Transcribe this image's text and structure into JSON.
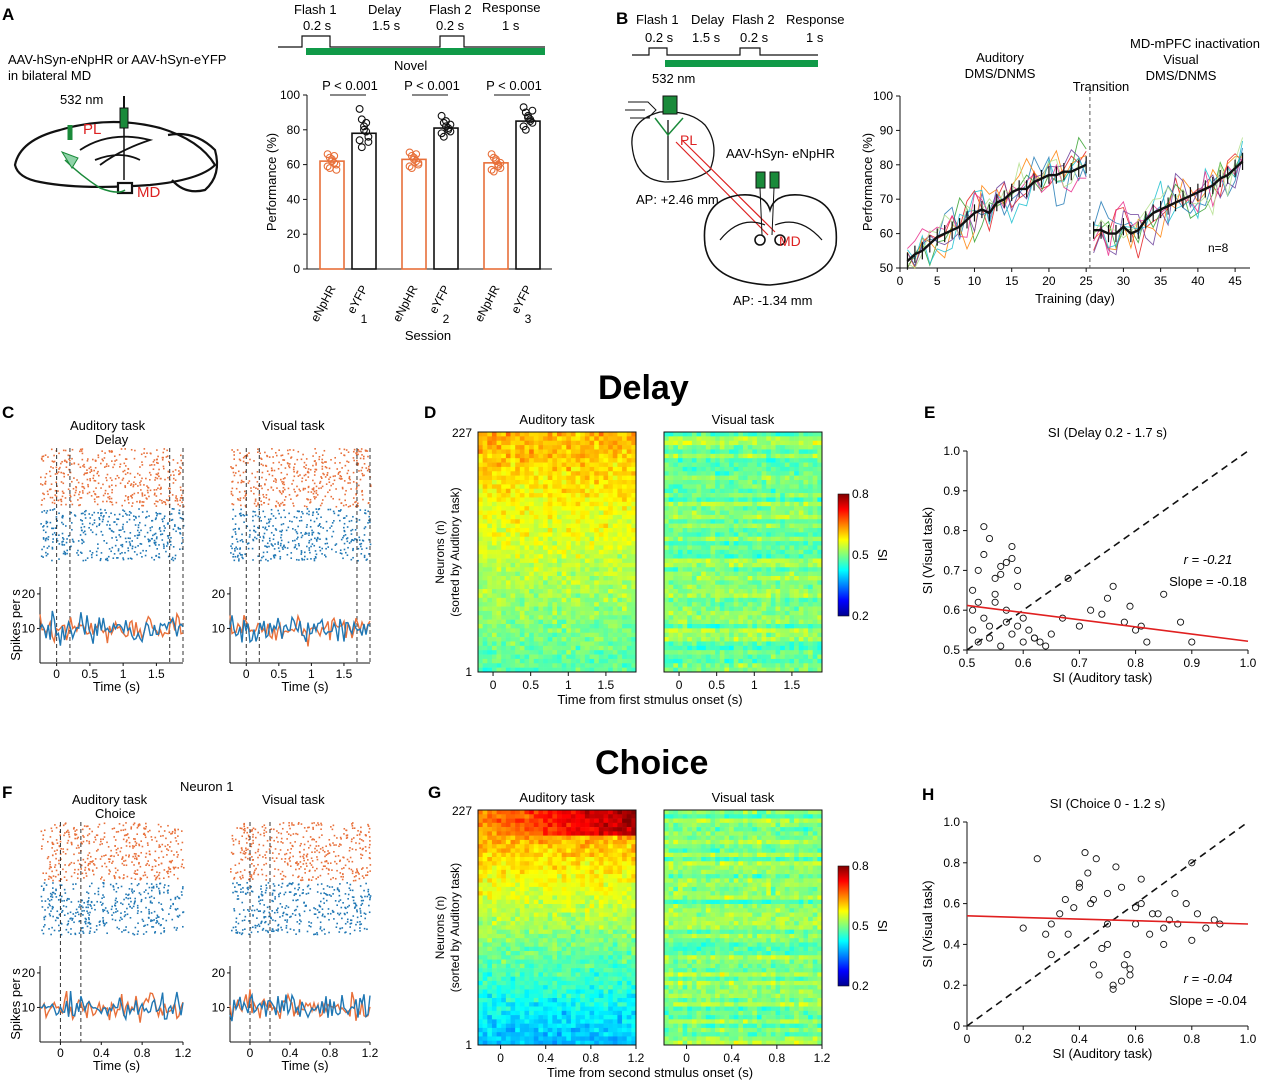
{
  "headers": {
    "delay": "Delay",
    "choice": "Choice"
  },
  "panels": {
    "A": "A",
    "B": "B",
    "C": "C",
    "D": "D",
    "E": "E",
    "F": "F",
    "G": "G",
    "H": "H"
  },
  "panelA": {
    "virus": "AAV-hSyn-eNpHR or AAV-hSyn-eYFP",
    "region": "in bilateral MD",
    "light": "532 nm",
    "pl": "PL",
    "md": "MD",
    "timeline": {
      "flash1": "Flash 1",
      "flash1_t": "0.2 s",
      "delay": "Delay",
      "delay_t": "1.5 s",
      "flash2": "Flash 2",
      "flash2_t": "0.2 s",
      "response": "Response",
      "response_t": "1 s"
    },
    "novel": "Novel",
    "pval": "P < 0.001",
    "ylabel": "Performance (%)",
    "xlabel": "Session",
    "groups": [
      "eNpHR",
      "eYFP"
    ],
    "sessions": [
      "1",
      "2",
      "3"
    ],
    "yticks": [
      "0",
      "20",
      "40",
      "60",
      "80",
      "100"
    ],
    "chart_data": {
      "type": "bar",
      "title": "",
      "xlabel": "Session",
      "ylabel": "Performance (%)",
      "ylim": [
        0,
        100
      ],
      "categories": [
        "1",
        "2",
        "3"
      ],
      "series": [
        {
          "name": "eNpHR",
          "values": [
            62,
            63,
            61
          ],
          "color": "#E8703A"
        },
        {
          "name": "eYFP",
          "values": [
            78,
            81,
            85
          ],
          "color": "#111111"
        }
      ],
      "points": {
        "eNpHR": [
          [
            66,
            64,
            62,
            61,
            60,
            59,
            58,
            63,
            65,
            57
          ],
          [
            67,
            65,
            63,
            62,
            60,
            59,
            58,
            64,
            66,
            61
          ],
          [
            66,
            64,
            62,
            60,
            58,
            57,
            56,
            63,
            59,
            61
          ]
        ],
        "eYFP": [
          [
            92,
            86,
            82,
            79,
            76,
            74,
            70,
            80,
            84,
            73
          ],
          [
            88,
            84,
            82,
            80,
            79,
            78,
            76,
            85,
            81,
            83
          ],
          [
            93,
            90,
            88,
            86,
            84,
            82,
            80,
            87,
            85,
            91
          ]
        ]
      }
    }
  },
  "panelB": {
    "timeline": {
      "flash1": "Flash 1",
      "flash1_t": "0.2 s",
      "delay": "Delay",
      "delay_t": "1.5 s",
      "flash2": "Flash 2",
      "flash2_t": "0.2 s",
      "response": "Response",
      "response_t": "1 s"
    },
    "light": "532 nm",
    "pl": "PL",
    "virus": "AAV-hSyn- eNpHR",
    "ap1": "AP: +2.46 mm",
    "md": "MD",
    "ap2": "AP: -1.34 mm",
    "phase1a": "Auditory",
    "phase1b": "DMS/DNMS",
    "transition": "Transition",
    "phase2a": "MD-mPFC inactivation",
    "phase2b": "Visual",
    "phase2c": "DMS/DNMS",
    "n": "n=8",
    "xlabel": "Training (day)",
    "ylabel": "Performance (%)",
    "xticks": [
      "0",
      "5",
      "10",
      "15",
      "20",
      "25",
      "30",
      "35",
      "40",
      "45"
    ],
    "yticks": [
      "50",
      "60",
      "70",
      "80",
      "90",
      "100"
    ],
    "chart_data": {
      "type": "line",
      "xlabel": "Training (day)",
      "ylabel": "Performance (%)",
      "xlim": [
        0,
        47
      ],
      "ylim": [
        50,
        100
      ],
      "series": [
        {
          "name": "mean_auditory",
          "x": [
            1,
            2,
            3,
            4,
            5,
            6,
            7,
            8,
            9,
            10,
            11,
            12,
            13,
            14,
            15,
            16,
            17,
            18,
            19,
            20,
            21,
            22,
            23,
            24,
            25
          ],
          "values": [
            52,
            54,
            55,
            57,
            59,
            60,
            61,
            62,
            64,
            66,
            67,
            66,
            69,
            70,
            72,
            73,
            73,
            75,
            76,
            77,
            77,
            78,
            78,
            79,
            80
          ]
        },
        {
          "name": "mean_visual",
          "x": [
            26,
            27,
            28,
            29,
            30,
            31,
            32,
            33,
            34,
            35,
            36,
            37,
            38,
            39,
            40,
            41,
            42,
            43,
            44,
            45,
            46
          ],
          "values": [
            61,
            61,
            60,
            60,
            62,
            60,
            61,
            64,
            66,
            67,
            68,
            69,
            70,
            71,
            72,
            73,
            74,
            76,
            77,
            79,
            81
          ]
        }
      ]
    }
  },
  "panelC": {
    "aud_title1": "Auditory task",
    "aud_title2": "Delay",
    "vis_title": "Visual task",
    "ylabel": "Spikes per s",
    "xlabel": "Time (s)",
    "yticks": [
      "10",
      "20"
    ],
    "xticks": [
      "0",
      "0.5",
      "1",
      "1.5"
    ]
  },
  "panelD": {
    "aud_title": "Auditory task",
    "vis_title": "Visual task",
    "ylabel1": "Neurons (n)",
    "ylabel2": "(sorted by Auditory task)",
    "ytop": "227",
    "ybot": "1",
    "xlabel": "Time from first stmulus onset (s)",
    "xticks": [
      "0",
      "0.5",
      "1",
      "1.5"
    ],
    "cbar": [
      "0.8",
      "0.5",
      "0.2"
    ],
    "cbar_label": "SI"
  },
  "panelE": {
    "title": "SI (Delay 0.2 - 1.7 s)",
    "xlabel": "SI (Auditory task)",
    "ylabel": "SI (Visual task)",
    "r": "r = -0.21",
    "slope": "Slope = -0.18",
    "xticks": [
      "0.5",
      "0.6",
      "0.7",
      "0.8",
      "0.9",
      "1.0"
    ],
    "yticks": [
      "0.5",
      "0.6",
      "0.7",
      "0.8",
      "0.9",
      "1.0"
    ],
    "chart_data": {
      "type": "scatter",
      "title": "SI (Delay 0.2 - 1.7 s)",
      "xlabel": "SI (Auditory task)",
      "ylabel": "SI (Visual task)",
      "xlim": [
        0.5,
        1.0
      ],
      "ylim": [
        0.5,
        1.0
      ],
      "fit": {
        "r": -0.21,
        "slope": -0.18,
        "x": [
          0.5,
          1.0
        ],
        "y": [
          0.612,
          0.522
        ]
      },
      "points_x": [
        0.51,
        0.52,
        0.53,
        0.54,
        0.55,
        0.56,
        0.57,
        0.58,
        0.59,
        0.6,
        0.52,
        0.53,
        0.55,
        0.57,
        0.58,
        0.51,
        0.54,
        0.56,
        0.59,
        0.61,
        0.62,
        0.63,
        0.65,
        0.67,
        0.7,
        0.72,
        0.75,
        0.78,
        0.8,
        0.82,
        0.85,
        0.88,
        0.9,
        0.76,
        0.79,
        0.81,
        0.68,
        0.74,
        0.53,
        0.55,
        0.57,
        0.6,
        0.52,
        0.56,
        0.58,
        0.54,
        0.51,
        0.59,
        0.62,
        0.64
      ],
      "points_y": [
        0.55,
        0.52,
        0.58,
        0.53,
        0.62,
        0.51,
        0.57,
        0.54,
        0.56,
        0.52,
        0.7,
        0.74,
        0.68,
        0.72,
        0.76,
        0.65,
        0.78,
        0.71,
        0.66,
        0.55,
        0.53,
        0.52,
        0.54,
        0.58,
        0.56,
        0.6,
        0.63,
        0.57,
        0.55,
        0.52,
        0.64,
        0.57,
        0.52,
        0.66,
        0.61,
        0.56,
        0.68,
        0.59,
        0.81,
        0.64,
        0.6,
        0.58,
        0.62,
        0.69,
        0.73,
        0.56,
        0.6,
        0.7,
        0.53,
        0.51
      ]
    }
  },
  "panelF": {
    "neuron": "Neuron 1",
    "aud_title1": "Auditory task",
    "aud_title2": "Choice",
    "vis_title": "Visual task",
    "ylabel": "Spikes per s",
    "xlabel": "Time (s)",
    "yticks": [
      "10",
      "20"
    ],
    "xticks": [
      "0",
      "0.4",
      "0.8",
      "1.2"
    ]
  },
  "panelG": {
    "aud_title": "Auditory task",
    "vis_title": "Visual task",
    "ylabel1": "Neurons (n)",
    "ylabel2": "(sorted by Auditory task)",
    "ytop": "227",
    "ybot": "1",
    "xlabel": "Time from second stmulus onset (s)",
    "xticks": [
      "0",
      "0.4",
      "0.8",
      "1.2"
    ],
    "cbar": [
      "0.8",
      "0.5",
      "0.2"
    ],
    "cbar_label": "SI"
  },
  "panelH": {
    "title": "SI (Choice 0 - 1.2 s)",
    "xlabel": "SI (Auditory task)",
    "ylabel": "SI (Visual task)",
    "r": "r = -0.04",
    "slope": "Slope = -0.04",
    "xticks": [
      "0",
      "0.2",
      "0.4",
      "0.6",
      "0.8",
      "1.0"
    ],
    "yticks": [
      "0",
      "0.2",
      "0.4",
      "0.6",
      "0.8",
      "1.0"
    ],
    "chart_data": {
      "type": "scatter",
      "title": "SI (Choice 0 - 1.2 s)",
      "xlabel": "SI (Auditory task)",
      "ylabel": "SI (Visual task)",
      "xlim": [
        0,
        1.0
      ],
      "ylim": [
        0,
        1.0
      ],
      "fit": {
        "r": -0.04,
        "slope": -0.04,
        "x": [
          0,
          1.0
        ],
        "y": [
          0.54,
          0.5
        ]
      },
      "points_x": [
        0.2,
        0.25,
        0.28,
        0.3,
        0.33,
        0.35,
        0.38,
        0.4,
        0.42,
        0.45,
        0.47,
        0.5,
        0.52,
        0.55,
        0.57,
        0.6,
        0.62,
        0.65,
        0.68,
        0.7,
        0.72,
        0.75,
        0.78,
        0.8,
        0.82,
        0.85,
        0.88,
        0.9,
        0.43,
        0.46,
        0.5,
        0.53,
        0.56,
        0.58,
        0.48,
        0.44,
        0.55,
        0.62,
        0.66,
        0.7,
        0.36,
        0.4,
        0.52,
        0.58,
        0.3,
        0.74,
        0.8,
        0.6,
        0.5,
        0.45
      ],
      "points_y": [
        0.48,
        0.82,
        0.45,
        0.5,
        0.55,
        0.62,
        0.58,
        0.7,
        0.85,
        0.3,
        0.25,
        0.4,
        0.2,
        0.22,
        0.35,
        0.5,
        0.6,
        0.45,
        0.55,
        0.48,
        0.52,
        0.5,
        0.6,
        0.8,
        0.55,
        0.48,
        0.52,
        0.5,
        0.75,
        0.82,
        0.65,
        0.78,
        0.3,
        0.28,
        0.38,
        0.6,
        0.68,
        0.72,
        0.55,
        0.4,
        0.45,
        0.68,
        0.18,
        0.25,
        0.35,
        0.65,
        0.42,
        0.58,
        0.5,
        0.62
      ]
    }
  }
}
